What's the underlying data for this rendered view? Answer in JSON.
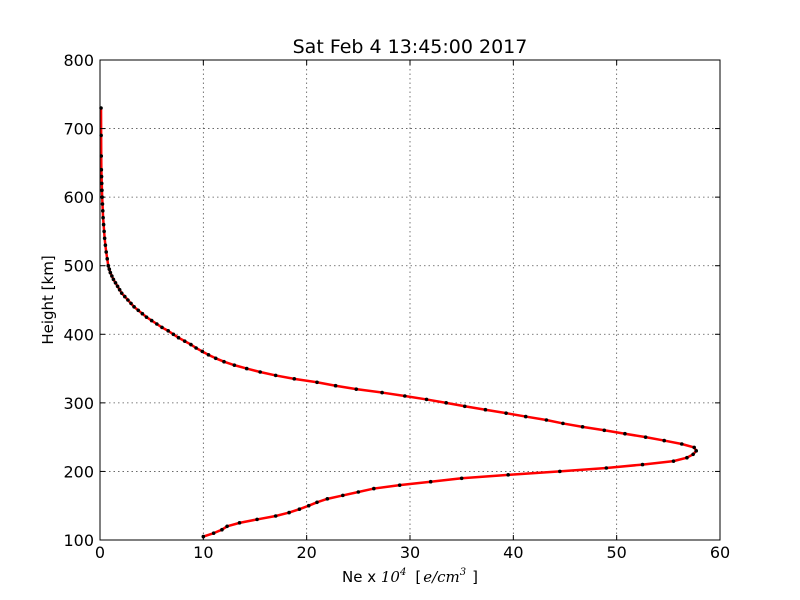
{
  "chart_data": {
    "type": "line",
    "title": "Sat Feb  4 13:45:00 2017",
    "xlabel": {
      "prefix": "Ne x ",
      "base": "10",
      "exp": "4",
      "unit": "e/cm",
      "unit_exp": "3",
      "open": "[",
      "close": "]"
    },
    "ylabel": "Height [km]",
    "xlim": [
      0,
      60
    ],
    "ylim": [
      100,
      800
    ],
    "xticks": [
      "0",
      "10",
      "20",
      "30",
      "40",
      "50",
      "60"
    ],
    "yticks": [
      "100",
      "200",
      "300",
      "400",
      "500",
      "600",
      "700",
      "800"
    ],
    "grid": true,
    "colors": {
      "line": "#ff0000",
      "marker": "#000000"
    },
    "series": [
      {
        "x": [
          10.0,
          11.0,
          11.8,
          12.3,
          13.5,
          15.2,
          17.0,
          18.3,
          19.3,
          20.2,
          21.0,
          22.0,
          23.5,
          25.0,
          26.5,
          29.0,
          32.0,
          35.0,
          39.5,
          44.5,
          49.0,
          52.5,
          55.5,
          56.8,
          57.4,
          57.7,
          57.5,
          56.3,
          54.6,
          52.8,
          50.8,
          48.8,
          46.7,
          44.8,
          43.2,
          41.2,
          39.3,
          37.3,
          35.3,
          33.5,
          31.6,
          29.5,
          27.3,
          24.8,
          22.8,
          21.0,
          18.8,
          17.0,
          15.5,
          14.2,
          13.0,
          12.0,
          11.2,
          10.5,
          9.9,
          9.3,
          8.8,
          8.2,
          7.6,
          7.1,
          6.6,
          6.0,
          5.5,
          5.0,
          4.5,
          4.1,
          3.7,
          3.3,
          3.0,
          2.7,
          2.4,
          2.1,
          1.9,
          1.7,
          1.5,
          1.3,
          1.15,
          1.0,
          0.9,
          0.8,
          0.7,
          0.6,
          0.52,
          0.45,
          0.4,
          0.35,
          0.3,
          0.27,
          0.24,
          0.21,
          0.19,
          0.17,
          0.15,
          0.13,
          0.12,
          0.11,
          0.1
        ],
        "y": [
          105,
          110,
          115,
          120,
          125,
          130,
          135,
          140,
          145,
          150,
          155,
          160,
          165,
          170,
          175,
          180,
          185,
          190,
          195,
          200,
          205,
          210,
          215,
          220,
          225,
          230,
          235,
          240,
          245,
          250,
          255,
          260,
          265,
          270,
          275,
          280,
          285,
          290,
          295,
          300,
          305,
          310,
          315,
          320,
          325,
          330,
          335,
          340,
          345,
          350,
          355,
          360,
          365,
          370,
          375,
          380,
          385,
          390,
          395,
          400,
          405,
          410,
          415,
          420,
          425,
          430,
          435,
          440,
          445,
          450,
          455,
          460,
          465,
          470,
          475,
          480,
          485,
          490,
          495,
          500,
          510,
          520,
          530,
          540,
          550,
          560,
          570,
          580,
          590,
          600,
          610,
          620,
          630,
          640,
          660,
          690,
          730
        ]
      }
    ]
  }
}
